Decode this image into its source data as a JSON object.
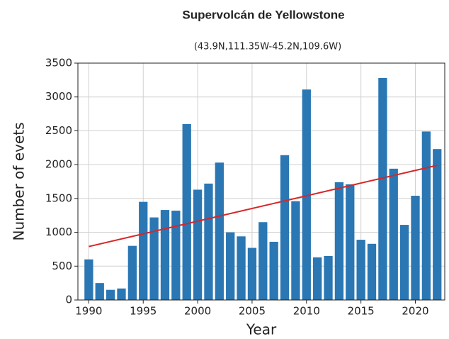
{
  "chart_data": {
    "type": "bar",
    "title": "Supervolcán de Yellowstone",
    "subtitle": "(43.9N,111.35W-45.2N,109.6W)",
    "x_label": "Year",
    "y_label": "Number of evets",
    "x": [
      1990,
      1991,
      1992,
      1993,
      1994,
      1995,
      1996,
      1997,
      1998,
      1999,
      2000,
      2001,
      2002,
      2003,
      2004,
      2005,
      2006,
      2007,
      2008,
      2009,
      2010,
      2011,
      2012,
      2013,
      2014,
      2015,
      2016,
      2017,
      2018,
      2019,
      2020,
      2021,
      2022
    ],
    "values": [
      600,
      250,
      150,
      170,
      800,
      1450,
      1220,
      1330,
      1320,
      2600,
      1630,
      1720,
      2030,
      1000,
      940,
      770,
      1150,
      860,
      2140,
      1460,
      3110,
      630,
      650,
      1740,
      1710,
      890,
      830,
      3280,
      1940,
      1110,
      1540,
      2490,
      2230
    ],
    "color": "#2a77b4",
    "trend": {
      "type": "line",
      "x": [
        1990,
        2022
      ],
      "values": [
        790,
        1990
      ],
      "color": "#d62728"
    },
    "xlim": [
      1989,
      2022.7
    ],
    "ylim": [
      0,
      3500
    ],
    "xticks": [
      1990,
      1995,
      2000,
      2005,
      2010,
      2015,
      2020
    ],
    "yticks": [
      0,
      500,
      1000,
      1500,
      2000,
      2500,
      3000,
      3500
    ],
    "grid": true
  }
}
